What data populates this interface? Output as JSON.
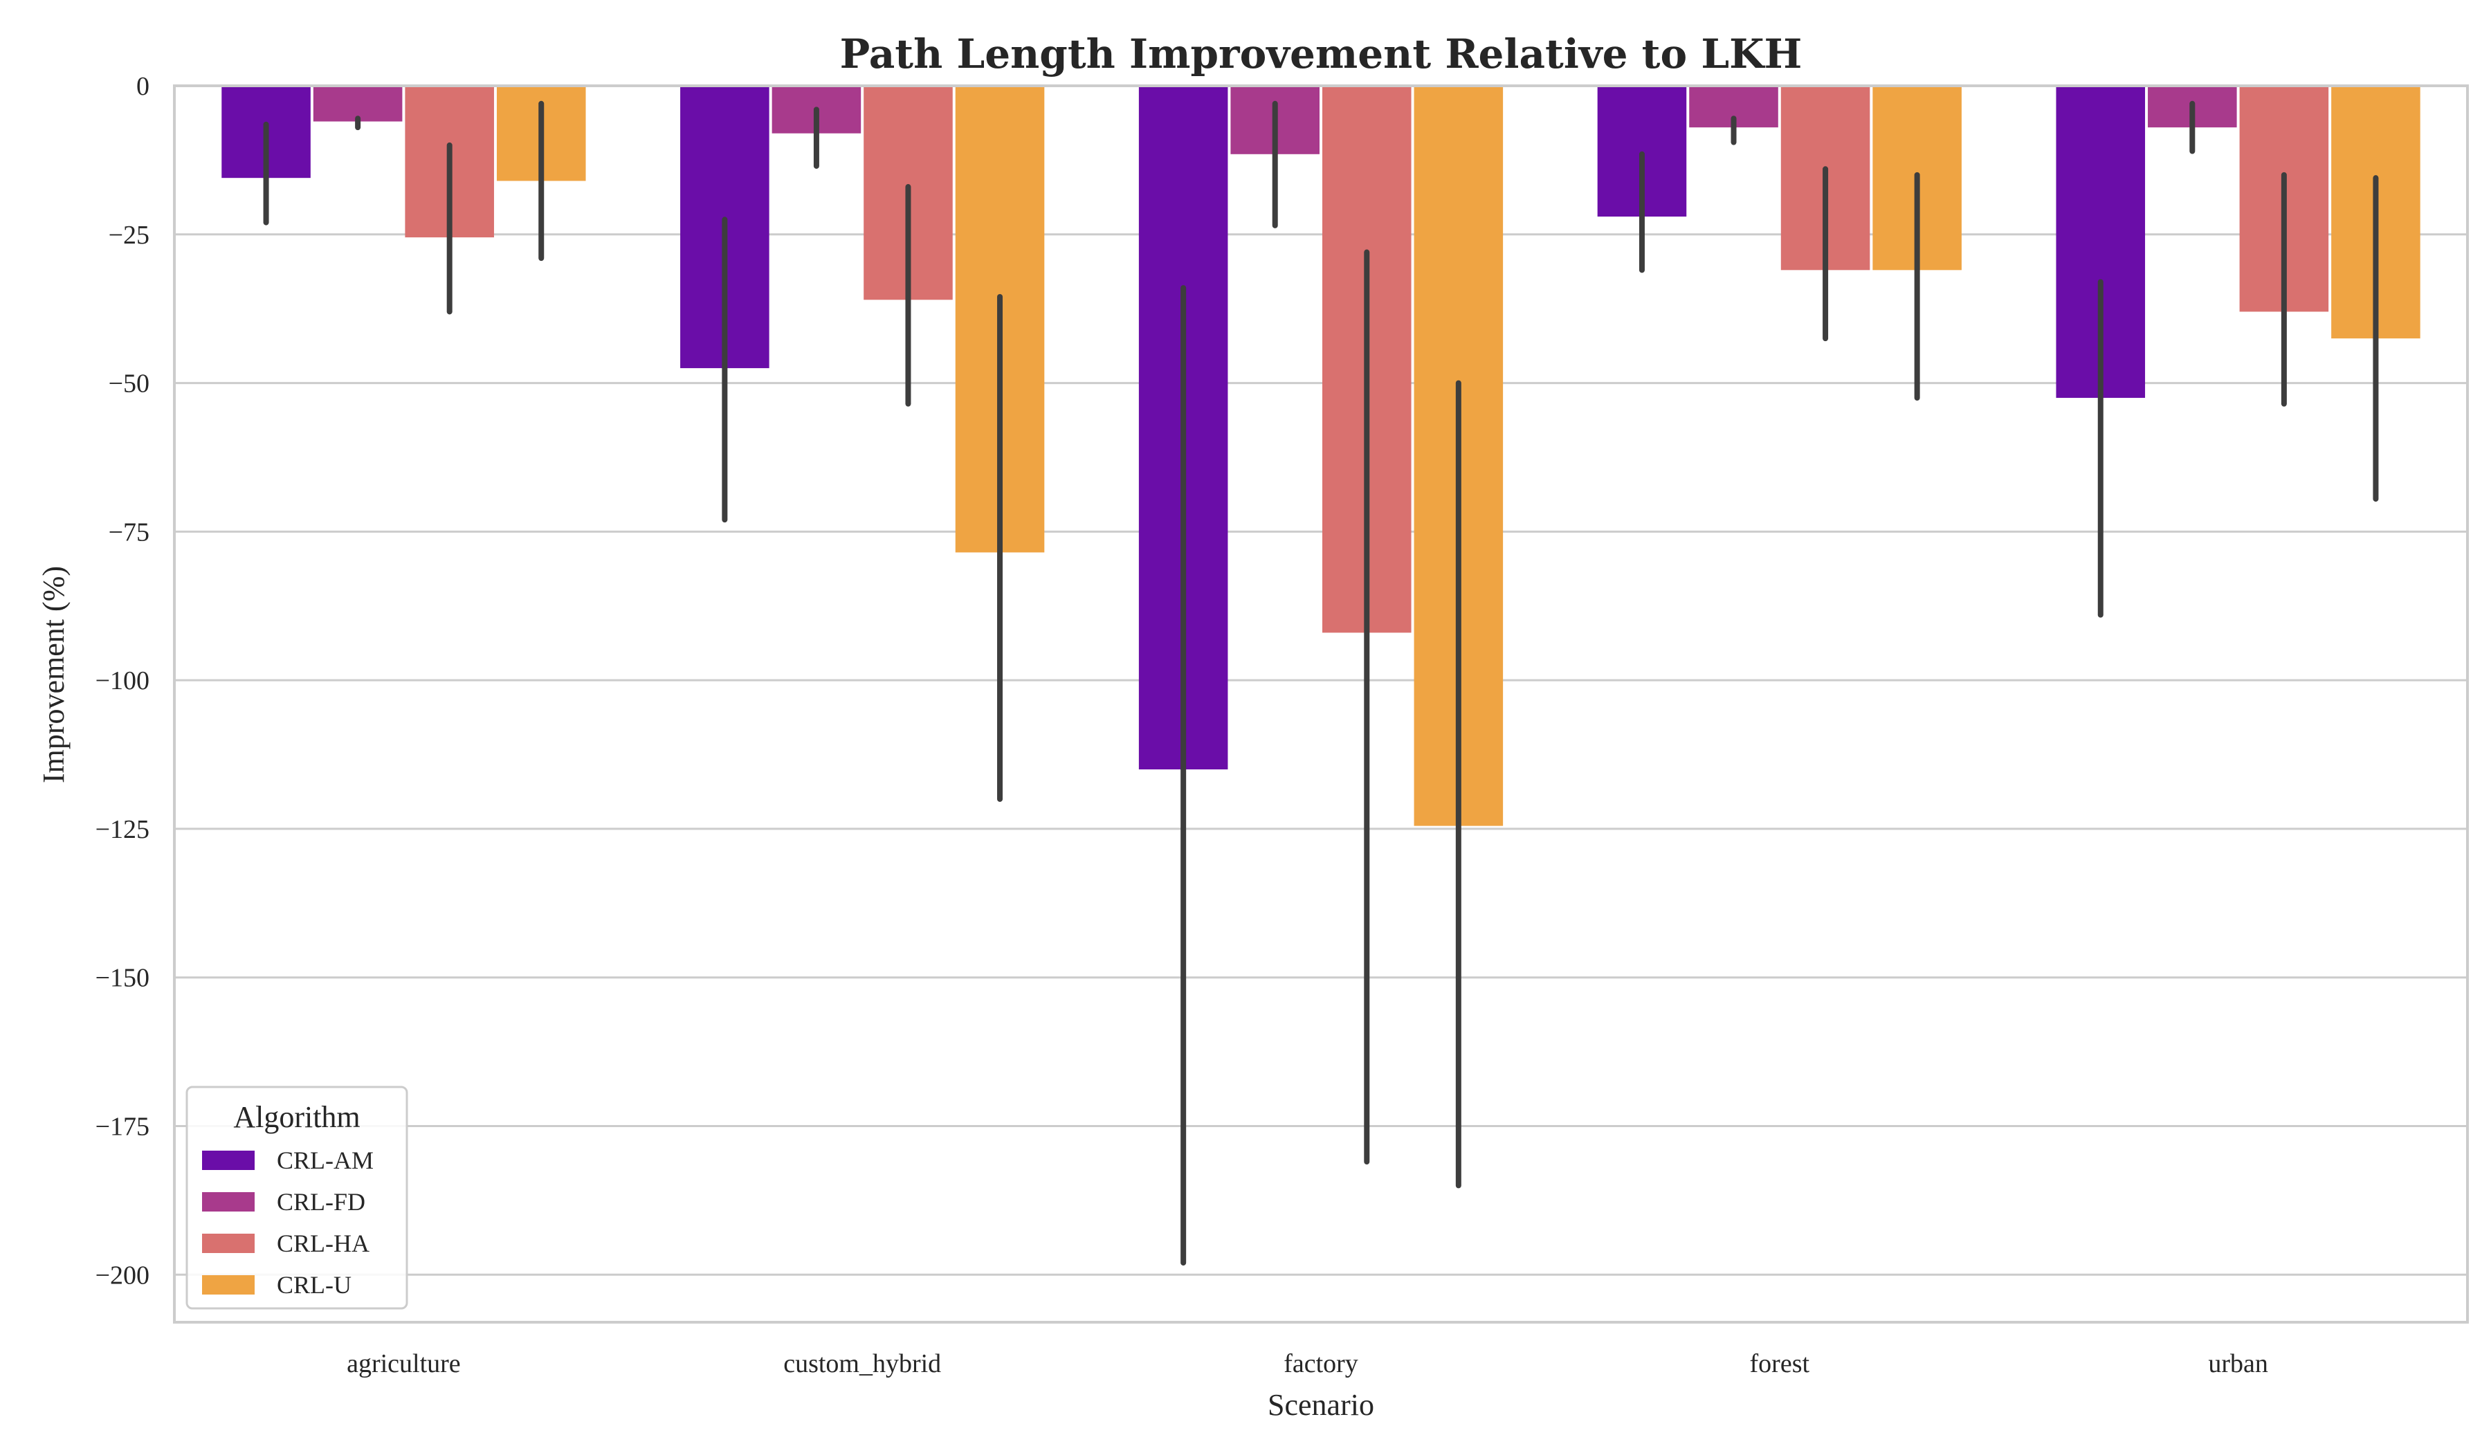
{
  "chart_data": {
    "type": "bar",
    "title": "Path Length Improvement Relative to LKH",
    "xlabel": "Scenario",
    "ylabel": "Improvement (%)",
    "categories": [
      "agriculture",
      "custom_hybrid",
      "factory",
      "forest",
      "urban"
    ],
    "ylim": [
      -208,
      0
    ],
    "yticks": [
      0,
      -25,
      -50,
      -75,
      -100,
      -125,
      -150,
      -175,
      -200
    ],
    "ytick_labels": [
      "0",
      "−25",
      "−50",
      "−75",
      "−100",
      "−125",
      "−150",
      "−175",
      "−200"
    ],
    "grid": true,
    "legend": {
      "title": "Algorithm",
      "placement": "bottom-left"
    },
    "series": [
      {
        "name": "CRL-AM",
        "color": "#6a0da8",
        "values": [
          -15.5,
          -47.5,
          -115,
          -22,
          -52.5
        ],
        "ci_low": [
          -23,
          -73,
          -198,
          -31,
          -89
        ],
        "ci_high": [
          -6.5,
          -22.5,
          -34,
          -11.5,
          -33
        ]
      },
      {
        "name": "CRL-FD",
        "color": "#a83a8c",
        "values": [
          -6,
          -8,
          -11.5,
          -7,
          -7
        ],
        "ci_low": [
          -7,
          -13.5,
          -23.5,
          -9.5,
          -11
        ],
        "ci_high": [
          -5.5,
          -4,
          -3,
          -5.5,
          -3
        ]
      },
      {
        "name": "CRL-HA",
        "color": "#d9716f",
        "values": [
          -25.5,
          -36,
          -92,
          -31,
          -38
        ],
        "ci_low": [
          -38,
          -53.5,
          -181,
          -42.5,
          -53.5
        ],
        "ci_high": [
          -10,
          -17,
          -28,
          -14,
          -15
        ]
      },
      {
        "name": "CRL-U",
        "color": "#efa443",
        "values": [
          -16,
          -78.5,
          -124.5,
          -31,
          -42.5
        ],
        "ci_low": [
          -29,
          -120,
          -185,
          -52.5,
          -69.5
        ],
        "ci_high": [
          -3,
          -35.5,
          -50,
          -15,
          -15.5
        ]
      }
    ]
  }
}
